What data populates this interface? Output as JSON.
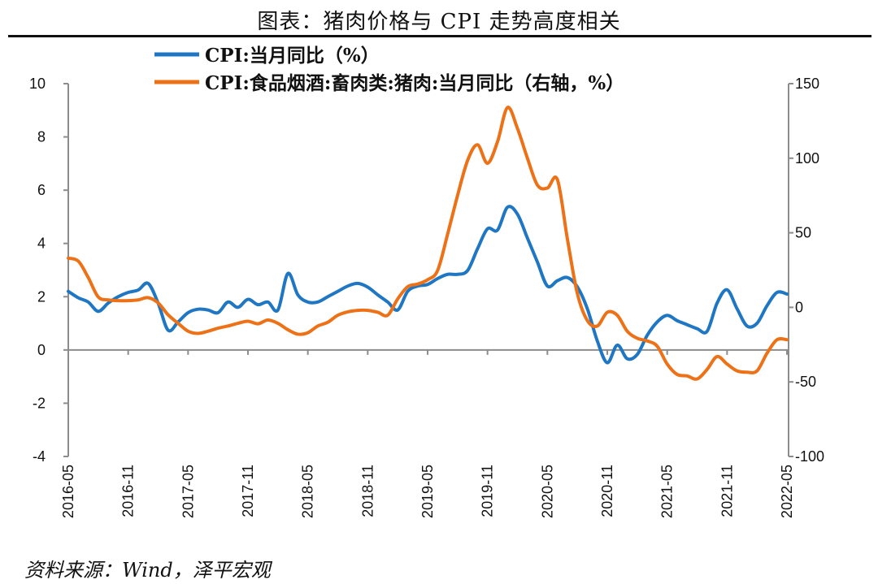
{
  "title": "图表：猪肉价格与 CPI 走势高度相关",
  "source": "资料来源：Wind，泽平宏观",
  "chart_data": {
    "type": "line",
    "x_start": "2016-05",
    "x_end": "2022-05",
    "x_tick_labels": [
      "2016-05",
      "2016-11",
      "2017-05",
      "2017-11",
      "2018-05",
      "2018-11",
      "2019-05",
      "2019-11",
      "2020-05",
      "2020-11",
      "2021-05",
      "2021-11",
      "2022-05"
    ],
    "y_left": {
      "range": [
        -4,
        10
      ],
      "ticks": [
        10,
        8,
        6,
        4,
        2,
        0,
        -2,
        -4
      ]
    },
    "y_right": {
      "range": [
        -100,
        150
      ],
      "ticks": [
        150,
        100,
        50,
        0,
        -50,
        -100
      ]
    },
    "grid": false,
    "legend_position": "top",
    "series": [
      {
        "name": "CPI:当月同比（%）",
        "axis": "left",
        "color": "#1f77c4",
        "values": [
          2.2,
          1.96,
          1.8,
          1.45,
          1.76,
          2.0,
          2.16,
          2.25,
          2.5,
          1.76,
          0.74,
          1.05,
          1.4,
          1.53,
          1.5,
          1.4,
          1.8,
          1.6,
          1.9,
          1.7,
          1.8,
          1.5,
          2.87,
          2.07,
          1.8,
          1.8,
          2.0,
          2.2,
          2.4,
          2.5,
          2.36,
          2.07,
          1.8,
          1.5,
          2.2,
          2.4,
          2.46,
          2.68,
          2.84,
          2.84,
          2.98,
          3.8,
          4.55,
          4.5,
          5.36,
          5.1,
          4.2,
          3.3,
          2.4,
          2.6,
          2.72,
          2.37,
          1.55,
          0.34,
          -0.48,
          0.18,
          -0.33,
          -0.17,
          0.55,
          1.05,
          1.3,
          1.1,
          0.95,
          0.8,
          0.7,
          1.76,
          2.26,
          1.55,
          0.9,
          1.0,
          1.66,
          2.16,
          2.1
        ]
      },
      {
        "name": "CPI:食品烟酒:畜肉类:猪肉:当月同比（右轴，%）",
        "axis": "right",
        "color": "#ed7117",
        "values": [
          33,
          31,
          20,
          7,
          5,
          4.5,
          4.5,
          5,
          6.5,
          3,
          -5,
          -10.7,
          -16,
          -17.5,
          -16,
          -14,
          -12.5,
          -10.7,
          -9.3,
          -11,
          -8.5,
          -10.7,
          -15,
          -18,
          -17,
          -12.5,
          -10,
          -5.3,
          -3,
          -2,
          -2,
          -3.3,
          -5.3,
          5.6,
          13.8,
          15.6,
          18.5,
          24.7,
          49,
          75,
          98.4,
          109,
          96.6,
          111,
          134,
          120,
          100,
          82,
          80,
          85.7,
          46,
          9.3,
          -8.8,
          -12.5,
          -3.3,
          -5.3,
          -16,
          -20.7,
          -22.5,
          -26,
          -38,
          -45,
          -46,
          -48,
          -41.6,
          -33,
          -38,
          -42.6,
          -43.5,
          -42.6,
          -30.8,
          -21.7,
          -21.7
        ]
      }
    ]
  }
}
